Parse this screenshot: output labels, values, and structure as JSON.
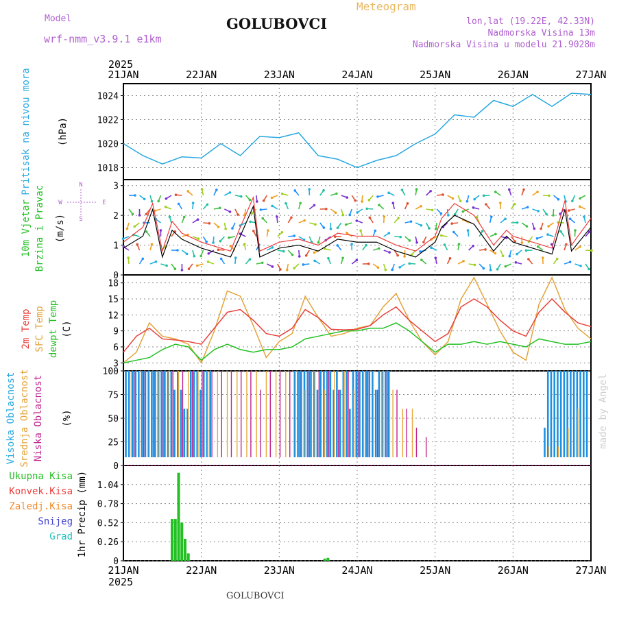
{
  "header": {
    "model_label": "Model",
    "model_name": "wrf-nmm_v3.9.1 e1km",
    "station": "GOLUBOVCI",
    "chart_kind": "Meteogram",
    "coords": "lon,lat (19.22E, 42.33N)",
    "elevation": "Nadmorska Visina 13m",
    "model_elevation": "Nadmorska Visina u modelu 21.9028m",
    "year": "2025"
  },
  "footer": {
    "station": "GOLUBOVCI",
    "credit": "made by Angel"
  },
  "colors": {
    "pressure": "#29a8e0",
    "wind_speed": "#000000",
    "gust": "#ee3b3b",
    "temp2m": "#e8413a",
    "sfc_temp": "#e3a33a",
    "dewpt": "#22c022",
    "high_cloud": "#1e90e0",
    "mid_cloud": "#e8a83a",
    "low_cloud": "#c0208f",
    "total_precip": "#22c022",
    "conv_precip": "#ee3b3b",
    "frozen_precip": "#f08a2a",
    "snow": "#4040d0",
    "hail": "#20c0c0",
    "grid": "#888888"
  },
  "chart_data": [
    {
      "panel": "pressure",
      "type": "line",
      "ylabel_lines": [
        "Pritisak na nivou mora",
        "(hPa)"
      ],
      "ylim": [
        1017,
        1025
      ],
      "yticks": [
        1018,
        1020,
        1022,
        1024
      ],
      "xlim": [
        0,
        144
      ],
      "x_ticks": [
        "21JAN",
        "22JAN",
        "23JAN",
        "24JAN",
        "25JAN",
        "26JAN",
        "27JAN"
      ],
      "grid": true,
      "series": [
        {
          "x": [
            0,
            6,
            12,
            18,
            24,
            30,
            36,
            42,
            48,
            54,
            60,
            66,
            72,
            78,
            84,
            90,
            96,
            102,
            108,
            114,
            120,
            126,
            132,
            138,
            144
          ],
          "y": [
            1020.0,
            1019.0,
            1018.3,
            1018.9,
            1018.8,
            1020.0,
            1019.0,
            1020.6,
            1020.5,
            1020.9,
            1019.0,
            1018.7,
            1018.0,
            1018.6,
            1019.0,
            1020.0,
            1020.8,
            1022.4,
            1022.2,
            1023.6,
            1023.1,
            1024.1,
            1023.1,
            1024.2,
            1024.1
          ]
        }
      ]
    },
    {
      "panel": "wind",
      "type": "line",
      "ylabel_lines": [
        "10m Vjetar",
        "Brzina i Pravac",
        "(m/s)"
      ],
      "compass": [
        "N",
        "S",
        "W",
        "E"
      ],
      "ylim": [
        0,
        3.2
      ],
      "yticks": [
        0,
        1,
        2,
        3
      ],
      "xlim": [
        0,
        144
      ],
      "grid": true,
      "series": [
        {
          "name": "speed",
          "x": [
            0,
            6,
            9,
            12,
            15,
            18,
            24,
            30,
            33,
            36,
            40,
            42,
            48,
            54,
            60,
            66,
            72,
            78,
            84,
            90,
            96,
            98,
            102,
            108,
            114,
            118,
            120,
            126,
            132,
            136,
            138,
            144
          ],
          "y": [
            0.9,
            1.3,
            2.2,
            0.6,
            1.5,
            1.2,
            0.9,
            0.7,
            0.6,
            1.3,
            2.3,
            0.6,
            0.9,
            1.0,
            0.8,
            1.2,
            1.1,
            1.1,
            0.8,
            0.6,
            1.1,
            1.6,
            2.0,
            1.7,
            0.8,
            1.3,
            1.1,
            0.9,
            0.7,
            2.2,
            0.8,
            1.6
          ]
        },
        {
          "name": "gust",
          "x": [
            0,
            6,
            9,
            12,
            15,
            18,
            24,
            30,
            33,
            36,
            40,
            42,
            48,
            54,
            60,
            66,
            72,
            78,
            84,
            90,
            96,
            98,
            102,
            108,
            114,
            118,
            120,
            126,
            132,
            136,
            138,
            144
          ],
          "y": [
            1.1,
            1.6,
            2.4,
            0.8,
            1.8,
            1.4,
            1.1,
            0.9,
            0.8,
            1.6,
            2.6,
            0.8,
            1.1,
            1.2,
            1.0,
            1.4,
            1.3,
            1.3,
            1.0,
            0.8,
            1.3,
            1.9,
            2.4,
            2.0,
            1.0,
            1.5,
            1.3,
            1.1,
            0.9,
            2.5,
            1.0,
            1.9
          ]
        }
      ]
    },
    {
      "panel": "temperature",
      "type": "line",
      "ylabel_lines": [
        "2m Temp",
        "SFC Temp",
        "dewpt Temp",
        "(C)"
      ],
      "ylim": [
        1.5,
        19.5
      ],
      "yticks": [
        3,
        6,
        9,
        12,
        15,
        18
      ],
      "xlim": [
        0,
        144
      ],
      "grid": true,
      "series": [
        {
          "name": "2m Temp",
          "x": [
            0,
            4,
            8,
            12,
            16,
            20,
            24,
            28,
            32,
            36,
            40,
            44,
            48,
            52,
            56,
            60,
            64,
            68,
            72,
            76,
            80,
            84,
            88,
            92,
            96,
            100,
            104,
            108,
            112,
            116,
            120,
            124,
            128,
            132,
            136,
            140,
            144
          ],
          "y": [
            5.0,
            8.0,
            9.5,
            7.5,
            7.3,
            7.0,
            6.5,
            9.5,
            12.5,
            13.0,
            11.0,
            8.5,
            8.0,
            9.5,
            13.0,
            11.5,
            9.3,
            9.2,
            9.3,
            10.0,
            12.0,
            13.5,
            11.0,
            9.0,
            7.0,
            8.5,
            13.5,
            15.0,
            13.5,
            11.0,
            9.0,
            8.0,
            12.5,
            15.0,
            12.5,
            10.5,
            9.8
          ]
        },
        {
          "name": "SFC Temp",
          "x": [
            0,
            4,
            8,
            12,
            16,
            20,
            24,
            28,
            32,
            36,
            40,
            44,
            48,
            52,
            56,
            60,
            64,
            68,
            72,
            76,
            80,
            84,
            88,
            92,
            96,
            100,
            104,
            108,
            112,
            116,
            120,
            124,
            128,
            132,
            136,
            140,
            144
          ],
          "y": [
            3.0,
            5.0,
            10.5,
            8.0,
            7.5,
            6.5,
            3.0,
            9.0,
            16.5,
            15.5,
            10.0,
            4.0,
            7.0,
            8.5,
            15.5,
            11.5,
            8.0,
            8.5,
            9.5,
            10.0,
            13.5,
            16.0,
            11.0,
            7.0,
            4.5,
            7.0,
            15.0,
            19.0,
            14.0,
            9.0,
            5.0,
            3.5,
            14.0,
            19.0,
            13.0,
            9.5,
            7.5
          ]
        },
        {
          "name": "dewpt Temp",
          "x": [
            0,
            4,
            8,
            12,
            16,
            20,
            24,
            28,
            32,
            36,
            40,
            44,
            48,
            52,
            56,
            60,
            64,
            68,
            72,
            76,
            80,
            84,
            88,
            92,
            96,
            100,
            104,
            108,
            112,
            116,
            120,
            124,
            128,
            132,
            136,
            140,
            144
          ],
          "y": [
            3.0,
            3.5,
            4.0,
            5.5,
            6.5,
            6.0,
            3.5,
            5.5,
            6.5,
            5.5,
            5.0,
            5.5,
            5.5,
            6.0,
            7.5,
            8.0,
            8.5,
            9.0,
            9.0,
            9.5,
            9.5,
            10.5,
            9.0,
            7.0,
            5.0,
            6.5,
            6.5,
            7.0,
            6.5,
            7.0,
            6.5,
            6.0,
            7.5,
            7.0,
            6.5,
            6.5,
            7.0
          ]
        }
      ]
    },
    {
      "panel": "cloud",
      "type": "bar",
      "ylabel_lines": [
        "Visoka Oblacnost",
        "Srednja Oblacnost",
        "Niska Oblacnost",
        "(%)"
      ],
      "ylim": [
        0,
        100
      ],
      "yticks": [
        0,
        25,
        50,
        75,
        100
      ],
      "xlim": [
        0,
        144
      ],
      "grid": true,
      "series": [
        {
          "name": "Visoka Oblacnost",
          "x": [
            1,
            2,
            3,
            4,
            5,
            6,
            7,
            8,
            9,
            10,
            11,
            12,
            13,
            14,
            15,
            16,
            17,
            18,
            19,
            20,
            21,
            22,
            23,
            24,
            25,
            26,
            27,
            53,
            54,
            55,
            56,
            57,
            58,
            59,
            60,
            61,
            62,
            63,
            64,
            65,
            66,
            67,
            68,
            69,
            70,
            71,
            72,
            73,
            74,
            75,
            76,
            77,
            78,
            79,
            80,
            81,
            82,
            130,
            131,
            132,
            133,
            134,
            135,
            136,
            137,
            138,
            139,
            140,
            141,
            142,
            143
          ],
          "y": [
            100,
            100,
            100,
            100,
            100,
            100,
            100,
            100,
            100,
            100,
            100,
            100,
            100,
            100,
            100,
            80,
            100,
            80,
            60,
            60,
            100,
            100,
            100,
            80,
            100,
            100,
            100,
            100,
            100,
            100,
            100,
            100,
            100,
            100,
            80,
            100,
            100,
            100,
            100,
            80,
            100,
            80,
            100,
            100,
            60,
            100,
            100,
            100,
            100,
            100,
            100,
            100,
            80,
            100,
            100,
            100,
            100,
            40,
            100,
            100,
            100,
            100,
            100,
            100,
            100,
            100,
            100,
            100,
            100,
            100,
            100
          ]
        },
        {
          "name": "Srednja Oblacnost",
          "x": [
            2,
            5,
            8,
            11,
            14,
            17,
            20,
            23,
            26,
            29,
            32,
            35,
            38,
            41,
            44,
            47,
            50,
            53,
            56,
            59,
            62,
            65,
            68,
            71,
            74,
            77,
            80,
            83,
            86,
            89,
            131,
            134,
            137,
            140,
            143
          ],
          "y": [
            100,
            100,
            100,
            100,
            100,
            100,
            100,
            100,
            100,
            100,
            100,
            100,
            100,
            100,
            100,
            100,
            100,
            100,
            80,
            100,
            80,
            100,
            100,
            80,
            100,
            100,
            100,
            80,
            60,
            60,
            20,
            20,
            40,
            60,
            40
          ]
        },
        {
          "name": "Niska Oblacnost",
          "x": [
            3,
            6,
            9,
            12,
            15,
            18,
            21,
            24,
            27,
            30,
            33,
            36,
            39,
            42,
            45,
            48,
            51,
            54,
            57,
            60,
            63,
            66,
            69,
            72,
            75,
            78,
            81,
            84,
            87,
            90,
            93
          ],
          "y": [
            100,
            100,
            100,
            100,
            100,
            100,
            100,
            100,
            100,
            100,
            100,
            100,
            100,
            80,
            100,
            100,
            100,
            100,
            100,
            100,
            100,
            80,
            100,
            100,
            100,
            80,
            100,
            80,
            60,
            40,
            30
          ]
        }
      ]
    },
    {
      "panel": "precip",
      "type": "bar",
      "ylabel_lines": [
        "1hr Precip (mm)"
      ],
      "legend": [
        "Ukupna Kisa",
        "Konvek.Kisa",
        "Zaledj.Kisa",
        "Snijeg",
        "Grad"
      ],
      "ylim": [
        0,
        1.3
      ],
      "yticks": [
        0,
        0.26,
        0.52,
        0.78,
        1.04
      ],
      "xlim": [
        0,
        144
      ],
      "x_ticks": [
        "21JAN",
        "22JAN",
        "23JAN",
        "24JAN",
        "25JAN",
        "26JAN",
        "27JAN"
      ],
      "grid": true,
      "series": [
        {
          "name": "Ukupna Kisa",
          "x": [
            15,
            16,
            17,
            18,
            19,
            20,
            62,
            63
          ],
          "y": [
            0.57,
            0.57,
            1.2,
            0.52,
            0.3,
            0.1,
            0.03,
            0.04
          ]
        }
      ]
    }
  ]
}
